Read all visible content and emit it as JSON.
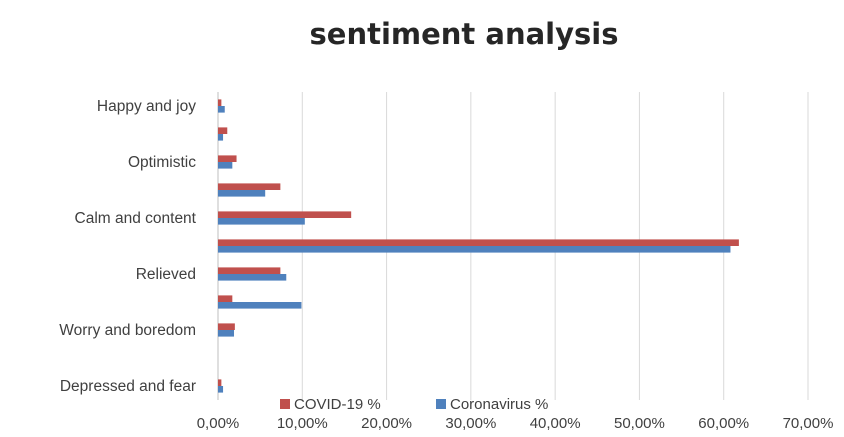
{
  "chart_data": {
    "type": "bar",
    "orientation": "horizontal",
    "title": "sentiment analysis",
    "xlabel": "",
    "ylabel": "",
    "xlim": [
      0,
      70
    ],
    "x_ticks": [
      "0,00%",
      "10,00%",
      "20,00%",
      "30,00%",
      "40,00%",
      "50,00%",
      "60,00%",
      "70,00%"
    ],
    "categories": [
      "Happy and joy",
      "",
      "Optimistic",
      "",
      "Calm and content",
      "",
      "Relieved",
      "",
      "Worry and boredom",
      "",
      "Depressed and fear"
    ],
    "series": [
      {
        "name": "COVID-19 %",
        "color": "#c0504d",
        "values": [
          0.4,
          1.1,
          2.2,
          7.4,
          15.8,
          61.8,
          7.4,
          1.7,
          2.0,
          0,
          0.4
        ]
      },
      {
        "name": "Coronavirus %",
        "color": "#4f81bd",
        "values": [
          0.8,
          0.6,
          1.7,
          5.6,
          10.3,
          60.8,
          8.1,
          9.9,
          1.9,
          0,
          0.6
        ]
      }
    ],
    "grid": true,
    "legend_position": "bottom"
  }
}
